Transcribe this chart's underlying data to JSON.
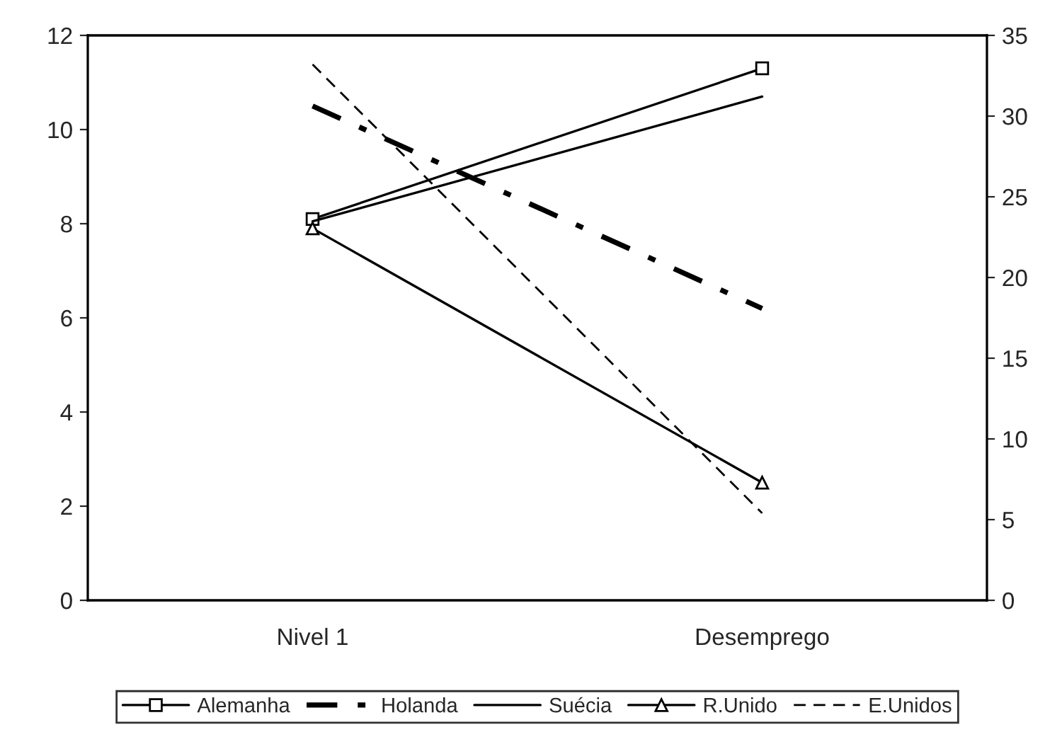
{
  "chart_data": {
    "type": "line",
    "categories": [
      "Nivel 1",
      "Desemprego"
    ],
    "series": [
      {
        "name": "Alemanha",
        "color": "#000000",
        "values": [
          8.1,
          11.3
        ],
        "marker": "square",
        "line_style": "solid"
      },
      {
        "name": "Holanda",
        "color": "#000000",
        "values": [
          10.5,
          6.2
        ],
        "marker": "none",
        "line_style": "dashdot"
      },
      {
        "name": "Suécia",
        "color": "#000000",
        "values": [
          8.05,
          10.7
        ],
        "marker": "none",
        "line_style": "solid"
      },
      {
        "name": "R.Unido",
        "color": "#000000",
        "values": [
          7.9,
          2.5
        ],
        "marker": "triangle",
        "line_style": "solid"
      },
      {
        "name": "E.Unidos",
        "color": "#000000",
        "values": [
          33.2,
          5.4
        ],
        "marker": "none",
        "line_style": "dashed",
        "axis": "y2"
      }
    ],
    "ylim": [
      0,
      12
    ],
    "yticks": [
      0,
      2,
      4,
      6,
      8,
      10,
      12
    ],
    "y2lim": [
      0,
      35
    ],
    "y2ticks": [
      0,
      5,
      10,
      15,
      20,
      25,
      30,
      35
    ],
    "grid": false,
    "legend": "bottom"
  }
}
